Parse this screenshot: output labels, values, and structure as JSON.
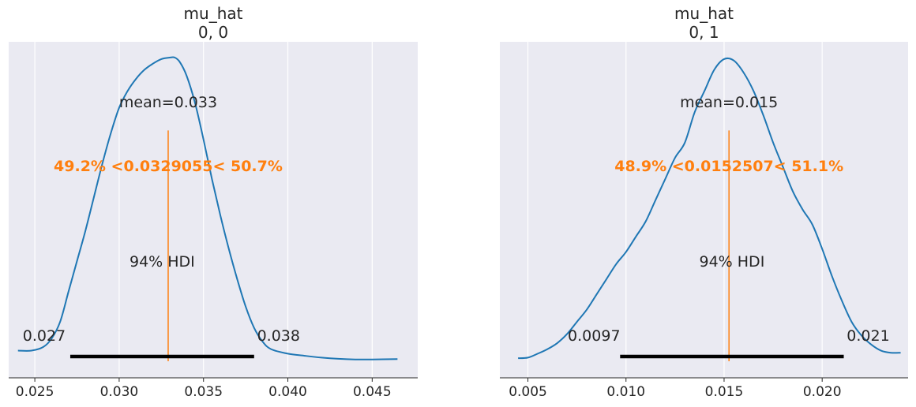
{
  "colors": {
    "background": "#eaeaf2",
    "grid": "#ffffff",
    "kde": "#1f77b4",
    "reference": "#ff7f0e",
    "hdi": "#000000",
    "text": "#262626"
  },
  "chart_data": [
    {
      "type": "line",
      "title": "mu_hat\n0, 0",
      "title_lines": [
        "mu_hat",
        "0, 0"
      ],
      "xlabel": "",
      "ylabel": "",
      "grid": true,
      "xlim": [
        0.02345,
        0.0477
      ],
      "xticks": [
        0.025,
        0.03,
        0.035,
        0.04,
        0.045
      ],
      "xtick_labels": [
        "0.025",
        "0.030",
        "0.035",
        "0.040",
        "0.045"
      ],
      "kde": {
        "x": [
          0.024,
          0.0248,
          0.0255,
          0.026,
          0.0265,
          0.027,
          0.0275,
          0.028,
          0.0285,
          0.029,
          0.0295,
          0.03,
          0.0305,
          0.031,
          0.0315,
          0.032,
          0.0325,
          0.033,
          0.0333,
          0.0336,
          0.034,
          0.0345,
          0.035,
          0.0355,
          0.036,
          0.0365,
          0.037,
          0.0375,
          0.038,
          0.0385,
          0.039,
          0.04,
          0.041,
          0.042,
          0.043,
          0.044,
          0.045,
          0.0465
        ],
        "y": [
          0.035,
          0.035,
          0.047,
          0.075,
          0.13,
          0.23,
          0.33,
          0.43,
          0.54,
          0.65,
          0.75,
          0.835,
          0.89,
          0.93,
          0.96,
          0.98,
          0.995,
          1.0,
          1.0,
          0.985,
          0.94,
          0.85,
          0.73,
          0.6,
          0.48,
          0.37,
          0.27,
          0.18,
          0.11,
          0.065,
          0.04,
          0.025,
          0.018,
          0.012,
          0.008,
          0.006,
          0.006,
          0.007
        ]
      },
      "mean": 0.0329055,
      "mean_label": "mean=0.033",
      "ref_value": 0.0329055,
      "ref_label": "49.2% <0.0329055< 50.7%",
      "ref_line_top": 0.76,
      "hdi_prob_label": "94% HDI",
      "hdi": [
        0.0271,
        0.038
      ],
      "hdi_lower_label": "0.027",
      "hdi_upper_label": "0.038"
    },
    {
      "type": "line",
      "title": "mu_hat\n0, 1",
      "title_lines": [
        "mu_hat",
        "0, 1"
      ],
      "xlabel": "",
      "ylabel": "",
      "grid": true,
      "xlim": [
        0.00357,
        0.02438
      ],
      "xticks": [
        0.005,
        0.01,
        0.015,
        0.02
      ],
      "xtick_labels": [
        "0.005",
        "0.010",
        "0.015",
        "0.020"
      ],
      "kde": {
        "x": [
          0.0045,
          0.005,
          0.0055,
          0.006,
          0.0065,
          0.007,
          0.0075,
          0.008,
          0.0085,
          0.009,
          0.0095,
          0.01,
          0.0105,
          0.011,
          0.0115,
          0.012,
          0.0125,
          0.013,
          0.0135,
          0.014,
          0.0145,
          0.015,
          0.0155,
          0.016,
          0.0165,
          0.017,
          0.0175,
          0.018,
          0.0185,
          0.019,
          0.0195,
          0.02,
          0.0205,
          0.021,
          0.0215,
          0.022,
          0.0225,
          0.023,
          0.0235,
          0.024
        ],
        "y": [
          0.01,
          0.012,
          0.025,
          0.04,
          0.06,
          0.09,
          0.13,
          0.17,
          0.22,
          0.27,
          0.32,
          0.36,
          0.41,
          0.46,
          0.53,
          0.6,
          0.67,
          0.72,
          0.82,
          0.89,
          0.96,
          0.995,
          0.99,
          0.95,
          0.89,
          0.81,
          0.72,
          0.64,
          0.56,
          0.5,
          0.45,
          0.37,
          0.28,
          0.2,
          0.13,
          0.085,
          0.055,
          0.035,
          0.028,
          0.028
        ]
      },
      "mean": 0.0152507,
      "mean_label": "mean=0.015",
      "ref_value": 0.0152507,
      "ref_label": "48.9% <0.0152507< 51.1%",
      "ref_line_top": 0.76,
      "hdi_prob_label": "94% HDI",
      "hdi": [
        0.0097,
        0.0211
      ],
      "hdi_lower_label": "0.0097",
      "hdi_upper_label": "0.021"
    }
  ]
}
